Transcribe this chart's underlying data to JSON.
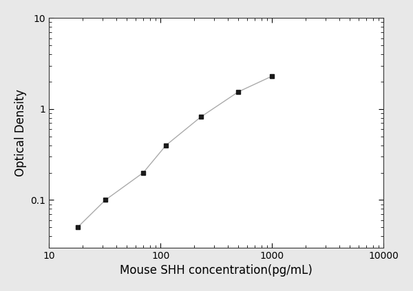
{
  "x": [
    18,
    32,
    70,
    112,
    230,
    500,
    1000
  ],
  "y": [
    0.05,
    0.1,
    0.2,
    0.4,
    0.82,
    1.55,
    2.3
  ],
  "xlabel": "Mouse SHH concentration(pg/mL)",
  "ylabel": "Optical Density",
  "xlim": [
    10,
    10000
  ],
  "ylim": [
    0.03,
    10
  ],
  "xticks": [
    10,
    100,
    1000,
    10000
  ],
  "yticks": [
    0.1,
    1,
    10
  ],
  "marker": "s",
  "marker_color": "#1a1a1a",
  "marker_size": 5,
  "line_color": "#aaaaaa",
  "line_style": "-",
  "line_width": 1.0,
  "bg_color": "#ffffff",
  "fig_bg_color": "#e8e8e8",
  "xlabel_fontsize": 12,
  "ylabel_fontsize": 12,
  "tick_fontsize": 10
}
